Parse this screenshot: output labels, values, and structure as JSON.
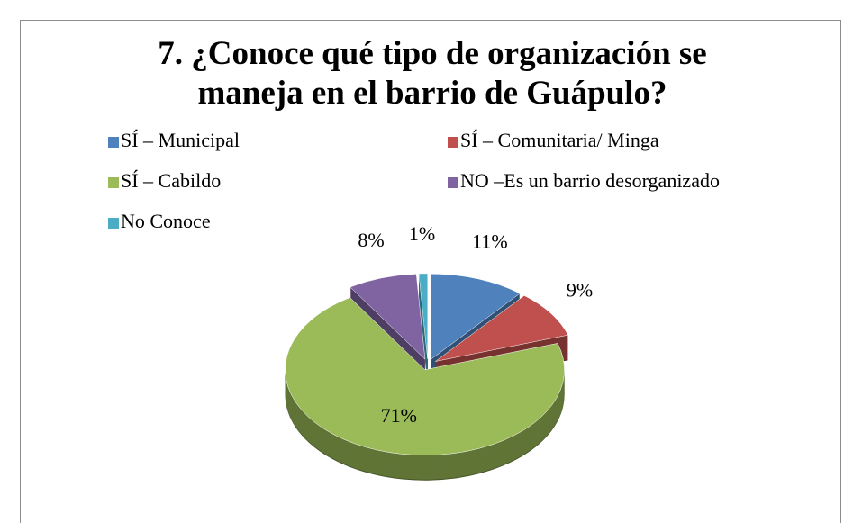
{
  "chart_data": {
    "type": "pie",
    "title": "7. ¿Conoce qué tipo de organización se maneja en el barrio de Guápulo?",
    "categories": [
      "SÍ – Municipal",
      "SÍ – Comunitaria/ Minga",
      "SÍ – Cabildo",
      "NO –Es un barrio desorganizado",
      "No Conoce"
    ],
    "values": [
      11,
      9,
      71,
      8,
      1
    ],
    "value_labels": [
      "11%",
      "9%",
      "71%",
      "8%",
      "1%"
    ],
    "colors": [
      "#4f81bd",
      "#c0504d",
      "#9bbb59",
      "#8064a2",
      "#4bacc6"
    ],
    "legend": "top"
  }
}
